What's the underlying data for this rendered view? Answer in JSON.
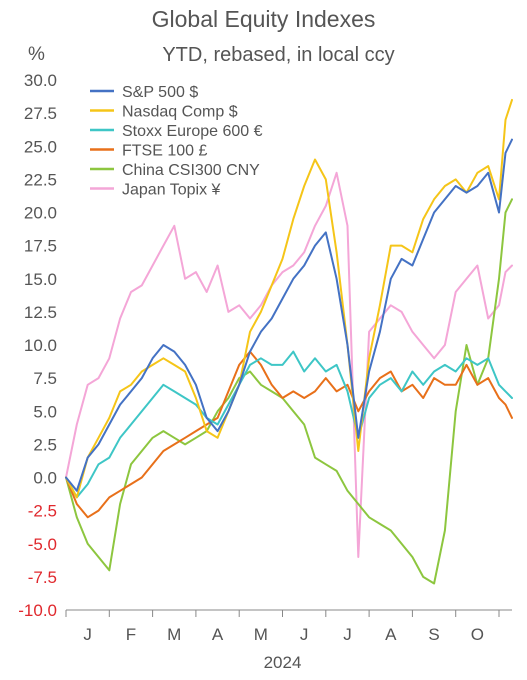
{
  "chart_data": {
    "type": "line",
    "title": "Global Equity Indexes",
    "subtitle": "YTD, rebased, in local ccy",
    "y_unit": "%",
    "xlabel": "2024",
    "ylabel": "",
    "ylim": [
      -10,
      30
    ],
    "y_ticks": [
      "30.0",
      "27.5",
      "25.0",
      "22.5",
      "20.0",
      "17.5",
      "15.0",
      "12.5",
      "10.0",
      "7.5",
      "5.0",
      "2.5",
      "0.0",
      "-2.5",
      "-5.0",
      "-7.5",
      "-10.0"
    ],
    "negative_tick_color": "#e0282d",
    "tick_color": "#555555",
    "x_ticks": [
      "J",
      "F",
      "M",
      "A",
      "M",
      "J",
      "J",
      "A",
      "S",
      "O"
    ],
    "x_range_months": [
      0,
      10.3
    ],
    "grid": false,
    "legend_position": "top-left",
    "series": [
      {
        "name": "S&P 500 $",
        "color": "#4472c4",
        "x": [
          0,
          0.25,
          0.5,
          0.75,
          1,
          1.25,
          1.5,
          1.75,
          2,
          2.25,
          2.5,
          2.75,
          3,
          3.25,
          3.5,
          3.75,
          4,
          4.25,
          4.5,
          4.75,
          5,
          5.25,
          5.5,
          5.75,
          6,
          6.25,
          6.5,
          6.75,
          7,
          7.25,
          7.5,
          7.75,
          8,
          8.25,
          8.5,
          8.75,
          9,
          9.25,
          9.5,
          9.75,
          10,
          10.15,
          10.3
        ],
        "values": [
          0,
          -1,
          1.5,
          2.5,
          4,
          5.5,
          6.5,
          7.5,
          9,
          10,
          9.5,
          8.5,
          7,
          4.5,
          3.5,
          5,
          7,
          9.5,
          11,
          12,
          13.5,
          15,
          16,
          17.5,
          18.5,
          15,
          10,
          3,
          8,
          11,
          15,
          16.5,
          16,
          18,
          20,
          21,
          22,
          21.5,
          22,
          23,
          20,
          24.5,
          25.5
        ]
      },
      {
        "name": "Nasdaq Comp $",
        "color": "#f5c518",
        "x": [
          0,
          0.25,
          0.5,
          0.75,
          1,
          1.25,
          1.5,
          1.75,
          2,
          2.25,
          2.5,
          2.75,
          3,
          3.25,
          3.5,
          3.75,
          4,
          4.25,
          4.5,
          4.75,
          5,
          5.25,
          5.5,
          5.75,
          6,
          6.25,
          6.5,
          6.75,
          7,
          7.25,
          7.5,
          7.75,
          8,
          8.25,
          8.5,
          8.75,
          9,
          9.25,
          9.5,
          9.75,
          10,
          10.15,
          10.3
        ],
        "values": [
          0,
          -1.5,
          1.5,
          3,
          4.5,
          6.5,
          7,
          8,
          8.5,
          9,
          8.5,
          8,
          6,
          3.5,
          3,
          5,
          7,
          11,
          12.5,
          14.5,
          16.5,
          19.5,
          22,
          24,
          22.5,
          17,
          10,
          2,
          9,
          13,
          17.5,
          17.5,
          17,
          19.5,
          21,
          22,
          22.5,
          21.5,
          23,
          23.5,
          21,
          27,
          28.5
        ]
      },
      {
        "name": "Stoxx Europe 600 €",
        "color": "#3ec6c6",
        "x": [
          0,
          0.25,
          0.5,
          0.75,
          1,
          1.25,
          1.5,
          1.75,
          2,
          2.25,
          2.5,
          2.75,
          3,
          3.25,
          3.5,
          3.75,
          4,
          4.25,
          4.5,
          4.75,
          5,
          5.25,
          5.5,
          5.75,
          6,
          6.25,
          6.5,
          6.75,
          7,
          7.25,
          7.5,
          7.75,
          8,
          8.25,
          8.5,
          8.75,
          9,
          9.25,
          9.5,
          9.75,
          10,
          10.15,
          10.3
        ],
        "values": [
          0,
          -1.5,
          -0.5,
          1,
          1.5,
          3,
          4,
          5,
          6,
          7,
          6.5,
          6,
          5.5,
          4.5,
          4,
          5.5,
          7,
          8.5,
          9,
          8.5,
          8.5,
          9.5,
          8,
          9,
          8,
          8.5,
          6.5,
          3,
          6,
          7,
          7.5,
          6.5,
          8,
          7,
          8,
          8.5,
          8,
          9,
          8.5,
          9,
          7,
          6.5,
          6
        ]
      },
      {
        "name": "FTSE 100 £",
        "color": "#e8701a",
        "x": [
          0,
          0.25,
          0.5,
          0.75,
          1,
          1.25,
          1.5,
          1.75,
          2,
          2.25,
          2.5,
          2.75,
          3,
          3.25,
          3.5,
          3.75,
          4,
          4.25,
          4.5,
          4.75,
          5,
          5.25,
          5.5,
          5.75,
          6,
          6.25,
          6.5,
          6.75,
          7,
          7.25,
          7.5,
          7.75,
          8,
          8.25,
          8.5,
          8.75,
          9,
          9.25,
          9.5,
          9.75,
          10,
          10.15,
          10.3
        ],
        "values": [
          0,
          -2,
          -3,
          -2.5,
          -1.5,
          -1,
          -0.5,
          0,
          1,
          2,
          2.5,
          3,
          3.5,
          4,
          4.5,
          6.5,
          8.5,
          9.5,
          8.5,
          7,
          6,
          6.5,
          6,
          6.5,
          7.5,
          6.5,
          7,
          5,
          6.5,
          7.5,
          8,
          6.5,
          7,
          6,
          7.5,
          7,
          7,
          8.5,
          7,
          7.5,
          6,
          5.5,
          4.5
        ]
      },
      {
        "name": "China CSI300 CNY",
        "color": "#8dc63f",
        "x": [
          0,
          0.25,
          0.5,
          0.75,
          1,
          1.25,
          1.5,
          1.75,
          2,
          2.25,
          2.5,
          2.75,
          3,
          3.25,
          3.5,
          3.75,
          4,
          4.25,
          4.5,
          4.75,
          5,
          5.25,
          5.5,
          5.75,
          6,
          6.25,
          6.5,
          6.75,
          7,
          7.25,
          7.5,
          7.75,
          8,
          8.25,
          8.5,
          8.75,
          9,
          9.25,
          9.5,
          9.75,
          10,
          10.15,
          10.3
        ],
        "values": [
          0,
          -3,
          -5,
          -6,
          -7,
          -2,
          1,
          2,
          3,
          3.5,
          3,
          2.5,
          3,
          3.5,
          5,
          6,
          7.5,
          8,
          7,
          6.5,
          6,
          5,
          4,
          1.5,
          1,
          0.5,
          -1,
          -2,
          -3,
          -3.5,
          -4,
          -5,
          -6,
          -7.5,
          -8,
          -4,
          5,
          10,
          7,
          9,
          15,
          20,
          21
        ]
      },
      {
        "name": "Japan Topix ¥",
        "color": "#f4a6d7",
        "x": [
          0,
          0.25,
          0.5,
          0.75,
          1,
          1.25,
          1.5,
          1.75,
          2,
          2.25,
          2.5,
          2.75,
          3,
          3.25,
          3.5,
          3.75,
          4,
          4.25,
          4.5,
          4.75,
          5,
          5.25,
          5.5,
          5.75,
          6,
          6.25,
          6.5,
          6.75,
          7,
          7.25,
          7.5,
          7.75,
          8,
          8.25,
          8.5,
          8.75,
          9,
          9.25,
          9.5,
          9.75,
          10,
          10.15,
          10.3
        ],
        "values": [
          0,
          4,
          7,
          7.5,
          9,
          12,
          14,
          14.5,
          16,
          17.5,
          19,
          15,
          15.5,
          14,
          16,
          12.5,
          13,
          12,
          13,
          14.5,
          15.5,
          16,
          17,
          19,
          20.5,
          23,
          19,
          -6,
          11,
          12,
          13,
          12.5,
          11,
          10,
          9,
          10,
          14,
          15,
          16,
          12,
          13,
          15.5,
          16
        ]
      }
    ]
  }
}
